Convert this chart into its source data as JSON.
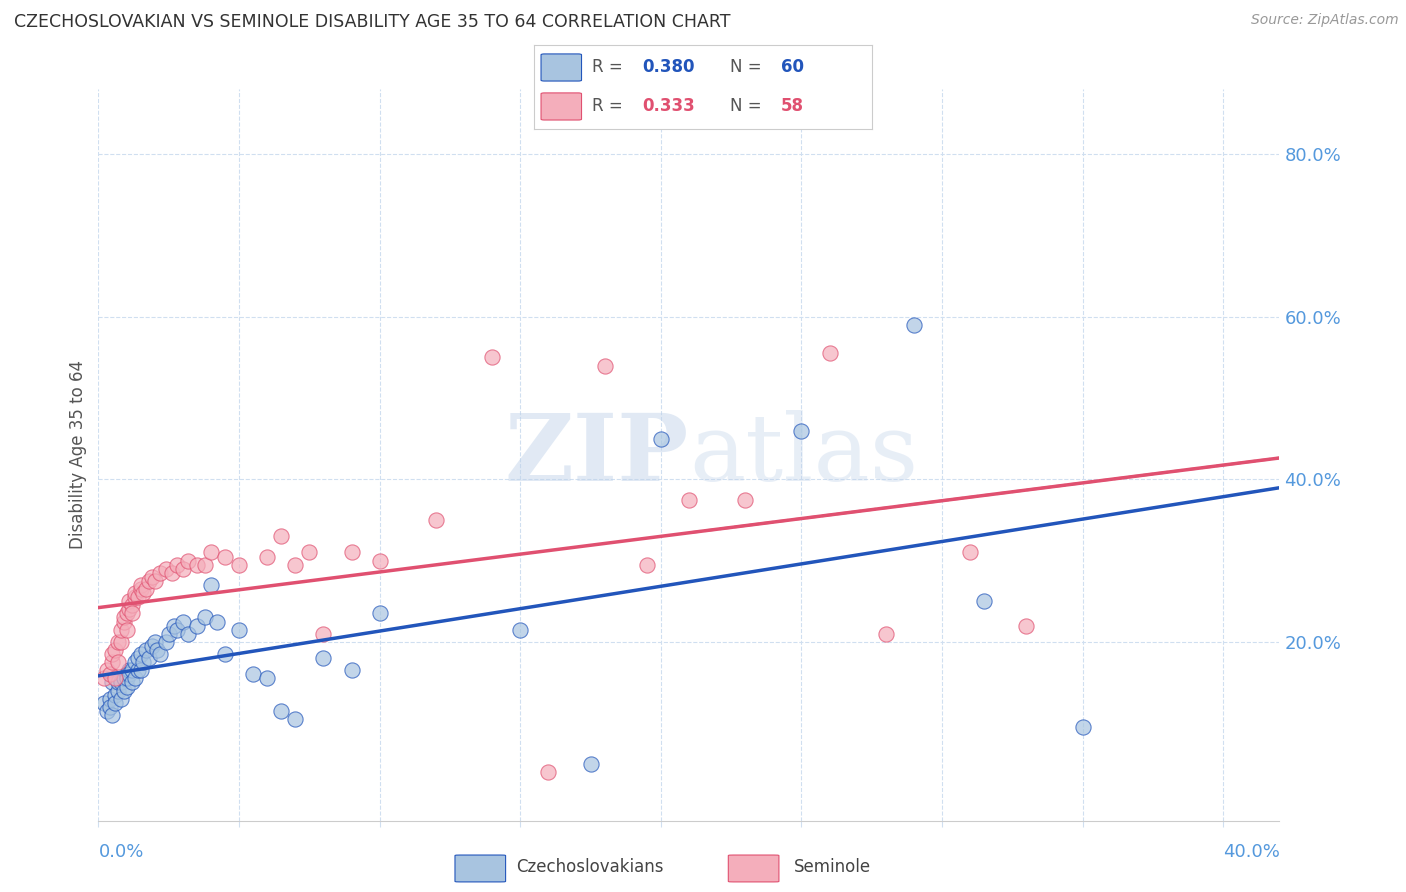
{
  "title": "CZECHOSLOVAKIAN VS SEMINOLE DISABILITY AGE 35 TO 64 CORRELATION CHART",
  "source": "Source: ZipAtlas.com",
  "ylabel": "Disability Age 35 to 64",
  "x_lim": [
    0.0,
    0.42
  ],
  "y_lim": [
    -0.02,
    0.88
  ],
  "legend1_R": "0.380",
  "legend1_N": "60",
  "legend2_R": "0.333",
  "legend2_N": "58",
  "blue_color": "#A8C4E0",
  "pink_color": "#F4AEBB",
  "trend_blue": "#2255BB",
  "trend_pink": "#E05070",
  "axis_tick_color": "#5599DD",
  "grid_color": "#D0DFF0",
  "watermark_zip": "ZIP",
  "watermark_atlas": "atlas",
  "czechs_x": [
    0.002,
    0.003,
    0.004,
    0.004,
    0.005,
    0.005,
    0.006,
    0.006,
    0.007,
    0.007,
    0.008,
    0.008,
    0.009,
    0.009,
    0.01,
    0.01,
    0.01,
    0.011,
    0.011,
    0.012,
    0.012,
    0.013,
    0.013,
    0.014,
    0.014,
    0.015,
    0.015,
    0.016,
    0.017,
    0.018,
    0.019,
    0.02,
    0.021,
    0.022,
    0.024,
    0.025,
    0.027,
    0.028,
    0.03,
    0.032,
    0.035,
    0.038,
    0.04,
    0.042,
    0.045,
    0.05,
    0.055,
    0.06,
    0.065,
    0.07,
    0.08,
    0.09,
    0.1,
    0.15,
    0.175,
    0.2,
    0.25,
    0.29,
    0.315,
    0.35
  ],
  "czechs_y": [
    0.125,
    0.115,
    0.13,
    0.12,
    0.11,
    0.15,
    0.135,
    0.125,
    0.14,
    0.15,
    0.13,
    0.15,
    0.14,
    0.155,
    0.145,
    0.16,
    0.155,
    0.165,
    0.16,
    0.15,
    0.165,
    0.155,
    0.175,
    0.165,
    0.18,
    0.165,
    0.185,
    0.175,
    0.19,
    0.18,
    0.195,
    0.2,
    0.19,
    0.185,
    0.2,
    0.21,
    0.22,
    0.215,
    0.225,
    0.21,
    0.22,
    0.23,
    0.27,
    0.225,
    0.185,
    0.215,
    0.16,
    0.155,
    0.115,
    0.105,
    0.18,
    0.165,
    0.235,
    0.215,
    0.05,
    0.45,
    0.46,
    0.59,
    0.25,
    0.095
  ],
  "seminole_x": [
    0.002,
    0.003,
    0.004,
    0.005,
    0.005,
    0.006,
    0.006,
    0.007,
    0.007,
    0.008,
    0.008,
    0.009,
    0.009,
    0.01,
    0.01,
    0.011,
    0.011,
    0.012,
    0.012,
    0.013,
    0.013,
    0.014,
    0.015,
    0.015,
    0.016,
    0.017,
    0.018,
    0.019,
    0.02,
    0.022,
    0.024,
    0.026,
    0.028,
    0.03,
    0.032,
    0.035,
    0.038,
    0.04,
    0.045,
    0.05,
    0.06,
    0.065,
    0.07,
    0.075,
    0.08,
    0.09,
    0.1,
    0.12,
    0.14,
    0.16,
    0.18,
    0.195,
    0.21,
    0.23,
    0.26,
    0.28,
    0.31,
    0.33
  ],
  "seminole_y": [
    0.155,
    0.165,
    0.16,
    0.175,
    0.185,
    0.155,
    0.19,
    0.175,
    0.2,
    0.2,
    0.215,
    0.225,
    0.23,
    0.215,
    0.235,
    0.24,
    0.25,
    0.245,
    0.235,
    0.255,
    0.26,
    0.255,
    0.265,
    0.27,
    0.26,
    0.265,
    0.275,
    0.28,
    0.275,
    0.285,
    0.29,
    0.285,
    0.295,
    0.29,
    0.3,
    0.295,
    0.295,
    0.31,
    0.305,
    0.295,
    0.305,
    0.33,
    0.295,
    0.31,
    0.21,
    0.31,
    0.3,
    0.35,
    0.55,
    0.04,
    0.54,
    0.295,
    0.375,
    0.375,
    0.555,
    0.21,
    0.31,
    0.22
  ]
}
